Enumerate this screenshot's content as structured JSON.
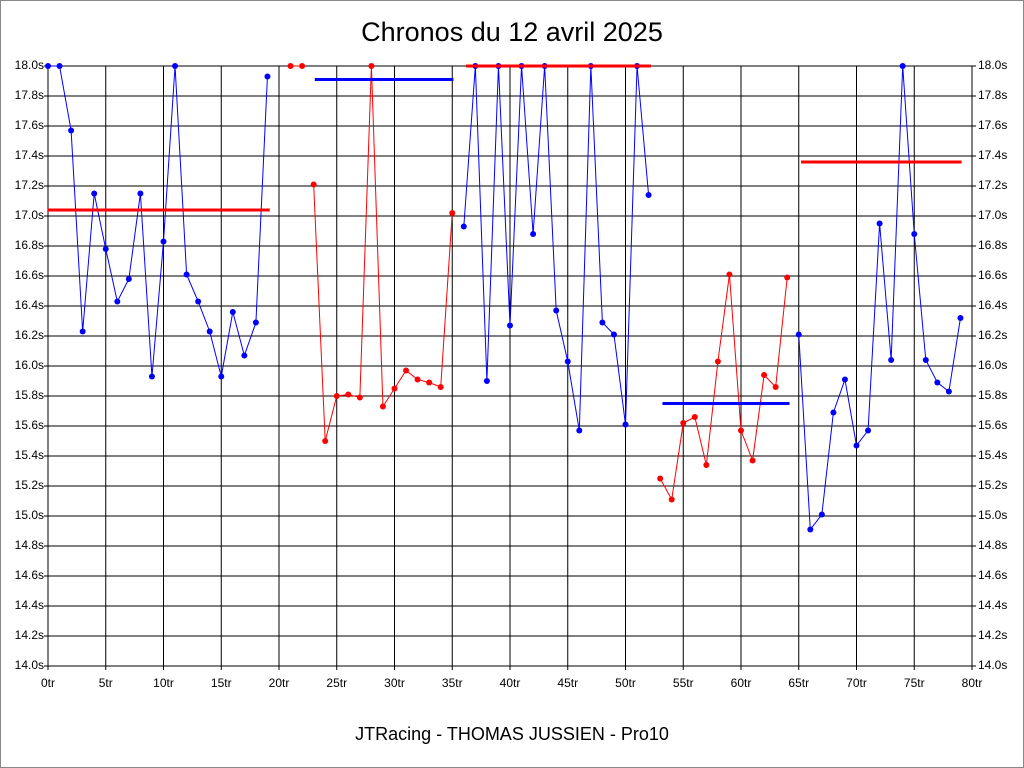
{
  "chart_data": {
    "type": "line",
    "title": "Chronos du 12 avril 2025",
    "subtitle": "JTRacing - THOMAS JUSSIEN - Pro10",
    "xlim": [
      0,
      80
    ],
    "xticks": [
      {
        "value": 0,
        "label": "0tr"
      },
      {
        "value": 5,
        "label": "5tr"
      },
      {
        "value": 10,
        "label": "10tr"
      },
      {
        "value": 15,
        "label": "15tr"
      },
      {
        "value": 20,
        "label": "20tr"
      },
      {
        "value": 25,
        "label": "25tr"
      },
      {
        "value": 30,
        "label": "30tr"
      },
      {
        "value": 35,
        "label": "35tr"
      },
      {
        "value": 40,
        "label": "40tr"
      },
      {
        "value": 45,
        "label": "45tr"
      },
      {
        "value": 50,
        "label": "50tr"
      },
      {
        "value": 55,
        "label": "55tr"
      },
      {
        "value": 60,
        "label": "60tr"
      },
      {
        "value": 65,
        "label": "65tr"
      },
      {
        "value": 70,
        "label": "70tr"
      },
      {
        "value": 75,
        "label": "75tr"
      },
      {
        "value": 80,
        "label": "80tr"
      }
    ],
    "ylim": [
      14.0,
      18.0
    ],
    "yticks": [
      {
        "value": 14.0,
        "label": "14.0s"
      },
      {
        "value": 14.2,
        "label": "14.2s"
      },
      {
        "value": 14.4,
        "label": "14.4s"
      },
      {
        "value": 14.6,
        "label": "14.6s"
      },
      {
        "value": 14.8,
        "label": "14.8s"
      },
      {
        "value": 15.0,
        "label": "15.0s"
      },
      {
        "value": 15.2,
        "label": "15.2s"
      },
      {
        "value": 15.4,
        "label": "15.4s"
      },
      {
        "value": 15.6,
        "label": "15.6s"
      },
      {
        "value": 15.8,
        "label": "15.8s"
      },
      {
        "value": 16.0,
        "label": "16.0s"
      },
      {
        "value": 16.2,
        "label": "16.2s"
      },
      {
        "value": 16.4,
        "label": "16.4s"
      },
      {
        "value": 16.6,
        "label": "16.6s"
      },
      {
        "value": 16.8,
        "label": "16.8s"
      },
      {
        "value": 17.0,
        "label": "17.0s"
      },
      {
        "value": 17.2,
        "label": "17.2s"
      },
      {
        "value": 17.4,
        "label": "17.4s"
      },
      {
        "value": 17.6,
        "label": "17.6s"
      },
      {
        "value": 17.8,
        "label": "17.8s"
      },
      {
        "value": 18.0,
        "label": "18.0s"
      }
    ],
    "grid": true,
    "series": [
      {
        "color": "#0000ff",
        "x": [
          0,
          1,
          2,
          3,
          4,
          5,
          6,
          7,
          8,
          9,
          10,
          11,
          12,
          13,
          14,
          15,
          16,
          17,
          18,
          19
        ],
        "values": [
          18.0,
          18.0,
          17.57,
          16.23,
          17.15,
          16.78,
          16.43,
          16.58,
          17.15,
          15.93,
          16.83,
          18.0,
          16.61,
          16.43,
          16.23,
          15.93,
          16.36,
          16.07,
          16.29,
          17.93
        ]
      },
      {
        "color": "#ff0000",
        "x": [
          21,
          22
        ],
        "values": [
          18.0,
          18.0
        ]
      },
      {
        "color": "#ff0000",
        "x": [
          23,
          24,
          25,
          26,
          27,
          28,
          29,
          30,
          31,
          32,
          33,
          34,
          35
        ],
        "values": [
          17.21,
          15.5,
          15.8,
          15.81,
          15.79,
          18.0,
          15.73,
          15.85,
          15.97,
          15.91,
          15.89,
          15.86,
          17.02
        ]
      },
      {
        "color": "#0000ff",
        "x": [
          36,
          37,
          38,
          39,
          40,
          41,
          42,
          43,
          44,
          45,
          46,
          47,
          48,
          49,
          50,
          51,
          52
        ],
        "values": [
          16.93,
          18.0,
          15.9,
          18.0,
          16.27,
          18.0,
          16.88,
          18.0,
          16.37,
          16.03,
          15.57,
          18.0,
          16.29,
          16.21,
          15.61,
          18.0,
          17.14
        ]
      },
      {
        "color": "#ff0000",
        "x": [
          53,
          54,
          55,
          56,
          57,
          58,
          59,
          60,
          61,
          62,
          63,
          64
        ],
        "values": [
          15.25,
          15.11,
          15.62,
          15.66,
          15.34,
          16.03,
          16.61,
          15.57,
          15.37,
          15.94,
          15.86,
          16.59
        ]
      },
      {
        "color": "#0000ff",
        "x": [
          65,
          66,
          67,
          68,
          69,
          70,
          71,
          72,
          73,
          74,
          75,
          76,
          77,
          78,
          79
        ],
        "values": [
          16.21,
          14.91,
          15.01,
          15.69,
          15.91,
          15.47,
          15.57,
          16.95,
          16.04,
          18.0,
          16.88,
          16.04,
          15.89,
          15.83,
          16.32
        ]
      }
    ],
    "averages": [
      {
        "color": "#ff0000",
        "value": 17.04,
        "x": [
          0,
          19.2
        ]
      },
      {
        "color": "#0000ff",
        "value": 17.91,
        "x": [
          23.1,
          35.1
        ]
      },
      {
        "color": "#ff0000",
        "value": 18.0,
        "x": [
          36.2,
          52.2
        ]
      },
      {
        "color": "#0000ff",
        "value": 15.75,
        "x": [
          53.2,
          64.2
        ]
      },
      {
        "color": "#ff0000",
        "value": 17.36,
        "x": [
          65.2,
          79.1
        ]
      }
    ]
  }
}
